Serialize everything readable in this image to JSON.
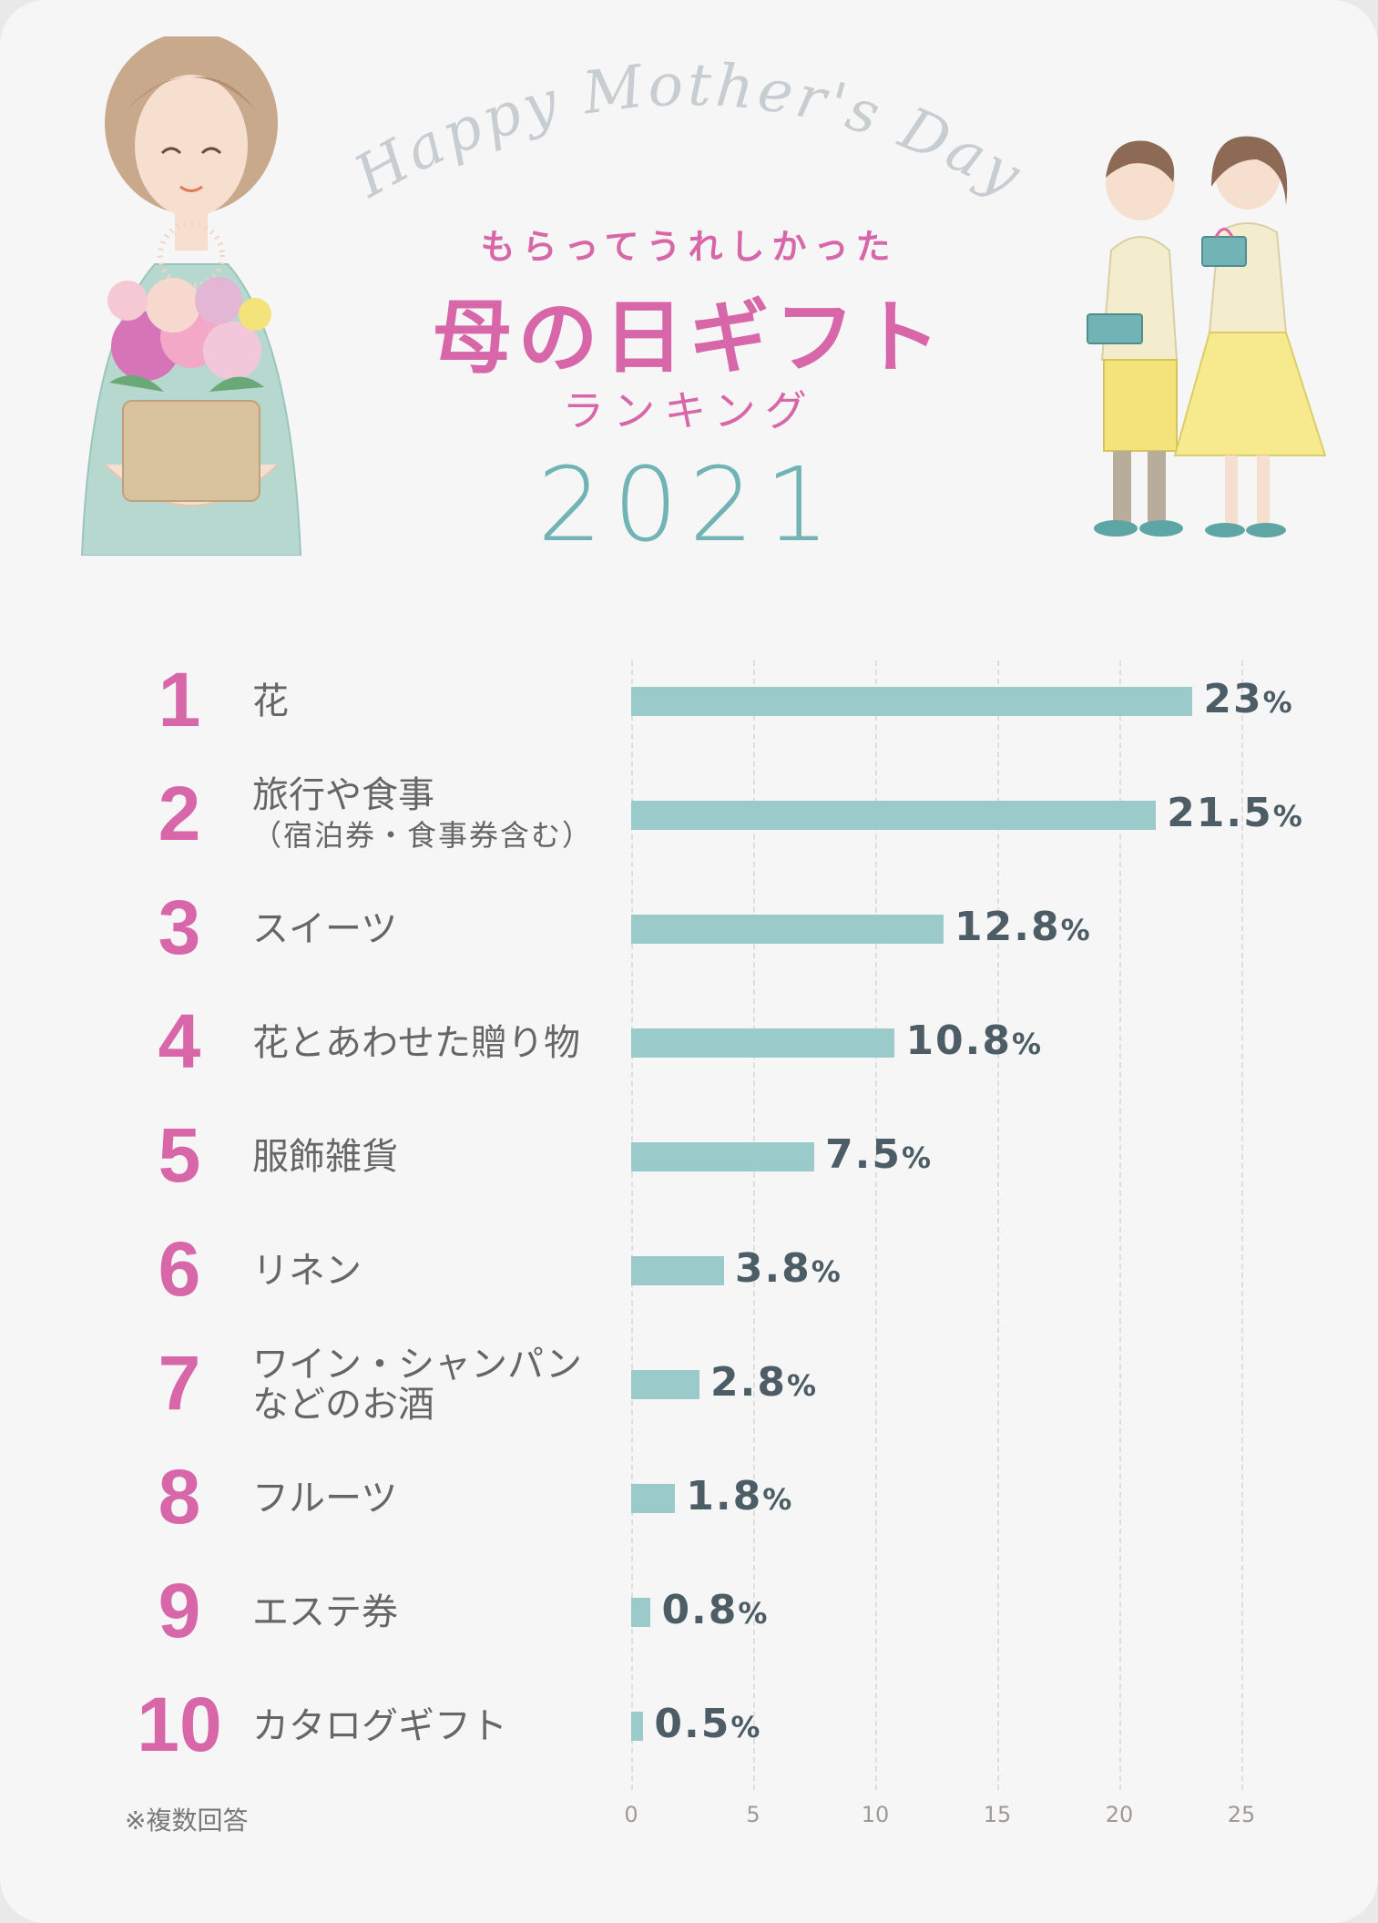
{
  "header": {
    "greeting": "Happy Mother's Day",
    "subtitle": "もらってうれしかった",
    "title": "母の日ギフト",
    "ranking": "ランキング",
    "year": "2021"
  },
  "note": "※複数回答",
  "colors": {
    "pink": "#d767a8",
    "bar": "#9bcacb",
    "teal": "#72b4b6",
    "value_text": "#4d5d66"
  },
  "chart_data": {
    "type": "bar",
    "orientation": "horizontal",
    "categories": [
      "花",
      "旅行や食事（宿泊券・食事券含む）",
      "スイーツ",
      "花とあわせた贈り物",
      "服飾雑貨",
      "リネン",
      "ワイン・シャンパンなどのお酒",
      "フルーツ",
      "エステ券",
      "カタログギフト"
    ],
    "values": [
      23,
      21.5,
      12.8,
      10.8,
      7.5,
      3.8,
      2.8,
      1.8,
      0.8,
      0.5
    ],
    "value_labels": [
      "23",
      "21.5",
      "12.8",
      "10.8",
      "7.5",
      "3.8",
      "2.8",
      "1.8",
      "0.8",
      "0.5"
    ],
    "value_unit": "%",
    "ranks": [
      "1",
      "2",
      "3",
      "4",
      "5",
      "6",
      "7",
      "8",
      "9",
      "10"
    ],
    "label_lines": [
      [
        "花"
      ],
      [
        "旅行や食事",
        "（宿泊券・食事券含む）"
      ],
      [
        "スイーツ"
      ],
      [
        "花とあわせた贈り物"
      ],
      [
        "服飾雑貨"
      ],
      [
        "リネン"
      ],
      [
        "ワイン・シャンパン",
        "などのお酒"
      ],
      [
        "フルーツ"
      ],
      [
        "エステ券"
      ],
      [
        "カタログギフト"
      ]
    ],
    "xticks": [
      "0",
      "5",
      "10",
      "15",
      "20",
      "25"
    ],
    "xlim": [
      0,
      25
    ],
    "grid": true
  }
}
